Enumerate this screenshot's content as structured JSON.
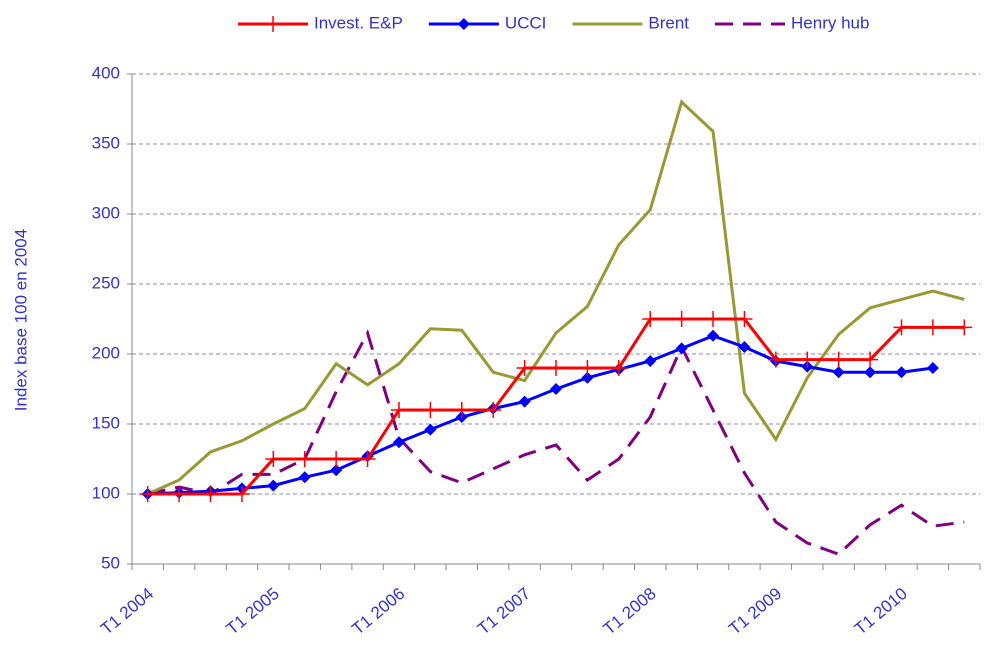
{
  "chart_data": {
    "type": "line",
    "y_label": "Index base 100 en  2004",
    "categories": [
      "T1 2004",
      null,
      null,
      null,
      "T1 2005",
      null,
      null,
      null,
      "T1 2006",
      null,
      null,
      null,
      "T1 2007",
      null,
      null,
      null,
      "T1 2008",
      null,
      null,
      null,
      "T1 2009",
      null,
      null,
      null,
      "T1 2010",
      null,
      null
    ],
    "series": [
      {
        "name": "Invest. E&P",
        "color": "#ff0000",
        "marker": "plus",
        "dashed": false,
        "values": [
          100,
          100,
          100,
          100,
          125,
          125,
          125,
          125,
          160,
          160,
          160,
          160,
          190,
          190,
          190,
          190,
          225,
          225,
          225,
          225,
          196,
          196,
          196,
          196,
          219,
          219,
          219
        ]
      },
      {
        "name": "UCCI",
        "color": "#0000ff",
        "marker": "diamond",
        "dashed": false,
        "values": [
          100,
          101,
          102,
          104,
          106,
          112,
          117,
          127,
          137,
          146,
          155,
          161,
          166,
          175,
          183,
          189,
          195,
          204,
          213,
          205,
          195,
          191,
          187,
          187,
          187,
          190,
          null
        ]
      },
      {
        "name": "Brent",
        "color": "#999933",
        "marker": "none",
        "dashed": false,
        "values": [
          100,
          110,
          130,
          138,
          150,
          161,
          193,
          178,
          193,
          218,
          217,
          187,
          181,
          215,
          234,
          278,
          303,
          380,
          359,
          172,
          139,
          183,
          214,
          233,
          239,
          245,
          239
        ]
      },
      {
        "name": "Henry hub",
        "color": "#800080",
        "marker": "none",
        "dashed": true,
        "values": [
          100,
          105,
          100,
          114,
          114,
          125,
          173,
          215,
          140,
          116,
          108,
          118,
          128,
          135,
          110,
          125,
          155,
          205,
          160,
          115,
          80,
          65,
          57,
          78,
          92,
          77,
          80
        ]
      }
    ],
    "ylim": [
      50,
      400
    ],
    "yticks": [
      50,
      100,
      150,
      200,
      250,
      300,
      350,
      400
    ],
    "grid": true,
    "legend": "top"
  }
}
